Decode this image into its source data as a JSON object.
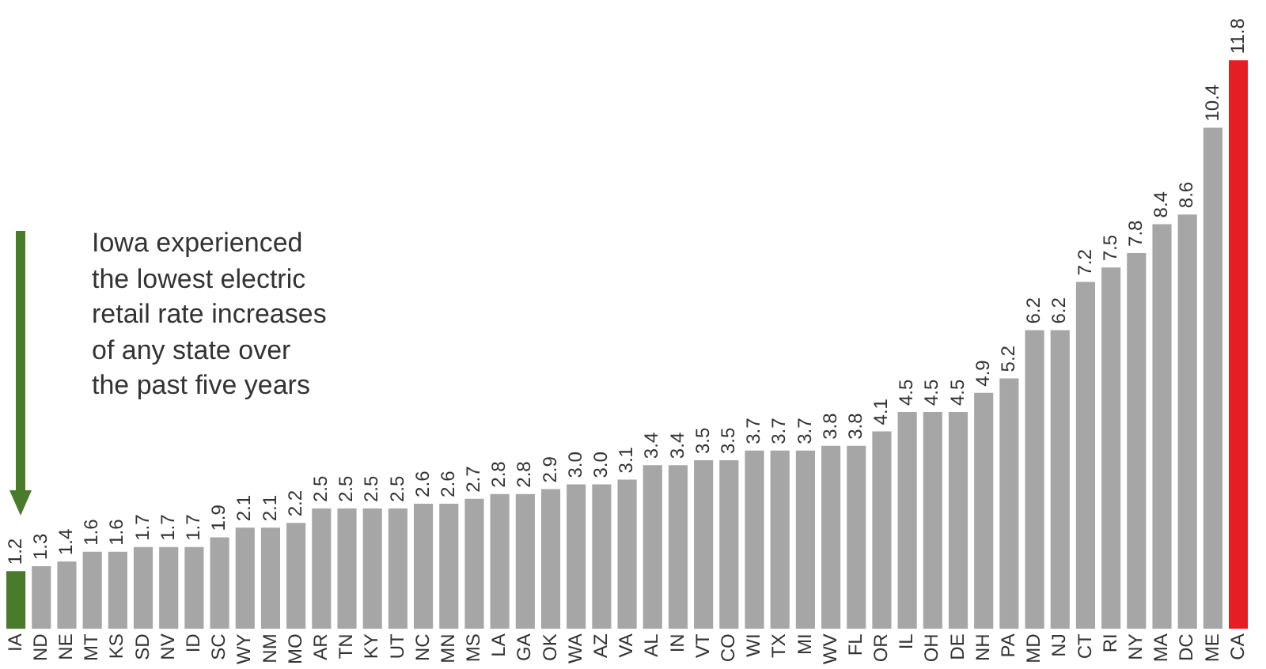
{
  "chart_data": {
    "type": "bar",
    "categories": [
      "IA",
      "ND",
      "NE",
      "MT",
      "KS",
      "SD",
      "NV",
      "ID",
      "SC",
      "WY",
      "NM",
      "MO",
      "AR",
      "TN",
      "KY",
      "UT",
      "NC",
      "MN",
      "MS",
      "LA",
      "GA",
      "OK",
      "WA",
      "AZ",
      "VA",
      "AL",
      "IN",
      "VT",
      "CO",
      "WI",
      "TX",
      "MI",
      "WV",
      "FL",
      "OR",
      "IL",
      "OH",
      "DE",
      "NH",
      "PA",
      "MD",
      "NJ",
      "CT",
      "RI",
      "NY",
      "MA",
      "DC",
      "ME",
      "CA"
    ],
    "values": [
      1.2,
      1.3,
      1.4,
      1.6,
      1.6,
      1.7,
      1.7,
      1.7,
      1.9,
      2.1,
      2.1,
      2.2,
      2.5,
      2.5,
      2.5,
      2.5,
      2.6,
      2.6,
      2.7,
      2.8,
      2.8,
      2.9,
      3.0,
      3.0,
      3.1,
      3.4,
      3.4,
      3.5,
      3.5,
      3.7,
      3.7,
      3.7,
      3.8,
      3.8,
      4.1,
      4.5,
      4.5,
      4.5,
      4.9,
      5.2,
      6.2,
      6.2,
      7.2,
      7.5,
      7.8,
      8.4,
      8.6,
      10.4,
      11.8
    ],
    "colors": [
      "#4a7a2b",
      "#a6a6a6",
      "#a6a6a6",
      "#a6a6a6",
      "#a6a6a6",
      "#a6a6a6",
      "#a6a6a6",
      "#a6a6a6",
      "#a6a6a6",
      "#a6a6a6",
      "#a6a6a6",
      "#a6a6a6",
      "#a6a6a6",
      "#a6a6a6",
      "#a6a6a6",
      "#a6a6a6",
      "#a6a6a6",
      "#a6a6a6",
      "#a6a6a6",
      "#a6a6a6",
      "#a6a6a6",
      "#a6a6a6",
      "#a6a6a6",
      "#a6a6a6",
      "#a6a6a6",
      "#a6a6a6",
      "#a6a6a6",
      "#a6a6a6",
      "#a6a6a6",
      "#a6a6a6",
      "#a6a6a6",
      "#a6a6a6",
      "#a6a6a6",
      "#a6a6a6",
      "#a6a6a6",
      "#a6a6a6",
      "#a6a6a6",
      "#a6a6a6",
      "#a6a6a6",
      "#a6a6a6",
      "#a6a6a6",
      "#a6a6a6",
      "#a6a6a6",
      "#a6a6a6",
      "#a6a6a6",
      "#a6a6a6",
      "#a6a6a6",
      "#a6a6a6",
      "#e31e24"
    ],
    "value_labels": [
      "1.2",
      "1.3",
      "1.4",
      "1.6",
      "1.6",
      "1.7",
      "1.7",
      "1.7",
      "1.9",
      "2.1",
      "2.1",
      "2.2",
      "2.5",
      "2.5",
      "2.5",
      "2.5",
      "2.6",
      "2.6",
      "2.7",
      "2.8",
      "2.8",
      "2.9",
      "3.0",
      "3.0",
      "3.1",
      "3.4",
      "3.4",
      "3.5",
      "3.5",
      "3.7",
      "3.7",
      "3.7",
      "3.8",
      "3.8",
      "4.1",
      "4.5",
      "4.5",
      "4.5",
      "4.9",
      "5.2",
      "6.2",
      "6.2",
      "7.2",
      "7.5",
      "7.8",
      "8.4",
      "8.6",
      "10.4",
      "11.8"
    ],
    "grid": false,
    "legend": false,
    "annotations": [
      "Iowa experienced the lowest electric retail rate increases of any state over the past five years"
    ]
  }
}
